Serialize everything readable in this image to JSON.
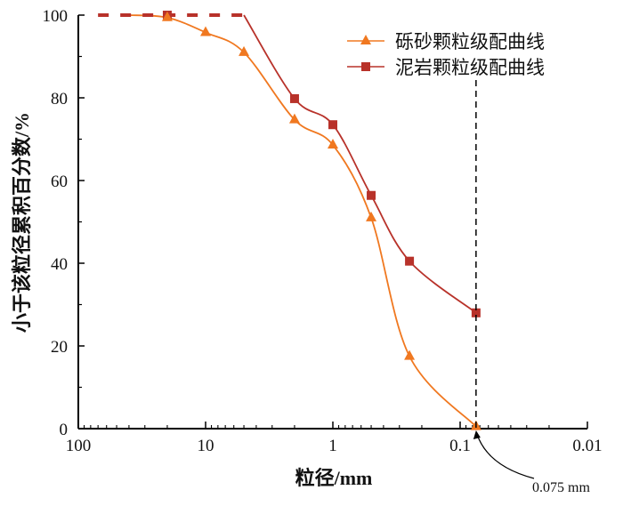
{
  "chart_data": {
    "type": "line",
    "xscale": "log-reversed",
    "xlim": [
      100,
      0.01
    ],
    "ylim": [
      0,
      100
    ],
    "xlabel": "粒径/mm",
    "ylabel": "小于该粒径累积百分数/%",
    "xticks": [
      "100",
      "10",
      "1",
      "0.1",
      "0.01"
    ],
    "xtick_values": [
      100,
      10,
      1,
      0.1,
      0.01
    ],
    "yticks": [
      "0",
      "20",
      "40",
      "60",
      "80",
      "100"
    ],
    "ytick_values": [
      0,
      20,
      40,
      60,
      80,
      100
    ],
    "legend_position": "top-right",
    "series": [
      {
        "name": "砾砂颗粒级配曲线",
        "marker": "triangle",
        "color": "#f07820",
        "x": [
          20,
          10,
          5,
          2,
          1,
          0.5,
          0.25,
          0.075
        ],
        "y": [
          99.4,
          95.8,
          91.0,
          74.7,
          68.6,
          51.0,
          17.5,
          0.5
        ]
      },
      {
        "name": "泥岩颗粒级配曲线",
        "marker": "square",
        "color": "#b8322a",
        "x": [
          20,
          2,
          1,
          0.5,
          0.25,
          0.075
        ],
        "y": [
          100,
          79.8,
          73.5,
          56.4,
          40.5,
          28.0
        ],
        "dashed_segment": {
          "x": [
            70,
            5
          ],
          "y": [
            100,
            100
          ]
        },
        "solid_from_x": 5
      }
    ],
    "annotations": [
      {
        "text": "0.075 mm",
        "x": 0.075,
        "y": 0,
        "vertical_dashed_line": true
      }
    ]
  }
}
